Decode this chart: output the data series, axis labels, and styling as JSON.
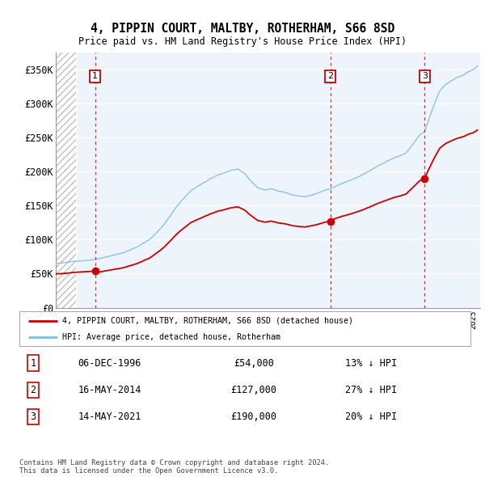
{
  "title": "4, PIPPIN COURT, MALTBY, ROTHERHAM, S66 8SD",
  "subtitle": "Price paid vs. HM Land Registry's House Price Index (HPI)",
  "ylabel_ticks": [
    "£0",
    "£50K",
    "£100K",
    "£150K",
    "£200K",
    "£250K",
    "£300K",
    "£350K"
  ],
  "ytick_values": [
    0,
    50000,
    100000,
    150000,
    200000,
    250000,
    300000,
    350000
  ],
  "ylim": [
    0,
    375000
  ],
  "xlim_start": 1994.0,
  "xlim_end": 2025.5,
  "sale_years_dec": [
    1996.917,
    2014.375,
    2021.375
  ],
  "sale_prices": [
    54000,
    127000,
    190000
  ],
  "sale_labels": [
    "1",
    "2",
    "3"
  ],
  "hpi_color": "#7fbfdf",
  "price_color": "#cc0000",
  "vline_color": "#cc0000",
  "legend_label_price": "4, PIPPIN COURT, MALTBY, ROTHERHAM, S66 8SD (detached house)",
  "legend_label_hpi": "HPI: Average price, detached house, Rotherham",
  "transaction_rows": [
    {
      "num": "1",
      "date": "06-DEC-1996",
      "price": "£54,000",
      "hpi": "13% ↓ HPI"
    },
    {
      "num": "2",
      "date": "16-MAY-2014",
      "price": "£127,000",
      "hpi": "27% ↓ HPI"
    },
    {
      "num": "3",
      "date": "14-MAY-2021",
      "price": "£190,000",
      "hpi": "20% ↓ HPI"
    }
  ],
  "footnote": "Contains HM Land Registry data © Crown copyright and database right 2024.\nThis data is licensed under the Open Government Licence v3.0.",
  "background_hatch_end_year": 1995.5
}
